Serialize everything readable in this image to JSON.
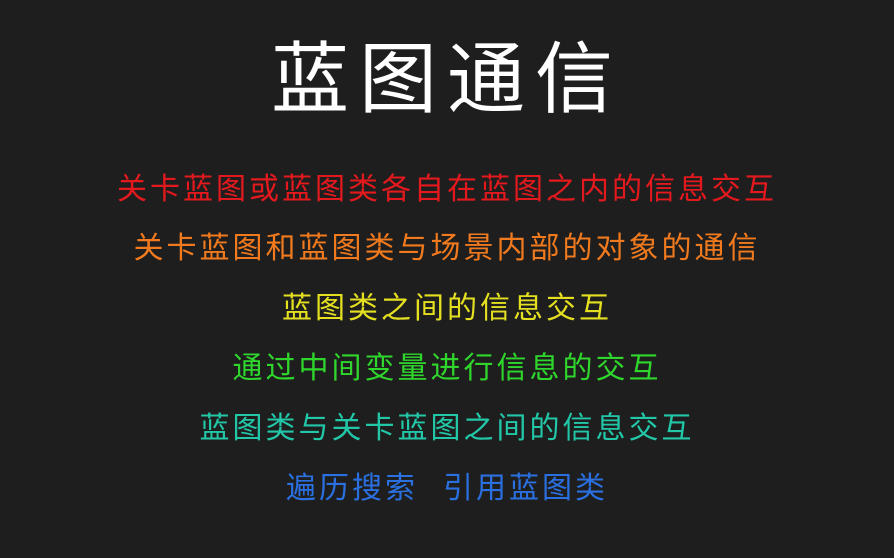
{
  "slide": {
    "title": "蓝图通信",
    "lines": [
      {
        "text": "关卡蓝图或蓝图类各自在蓝图之内的信息交互",
        "color": "#e3191e"
      },
      {
        "text": "关卡蓝图和蓝图类与场景内部的对象的通信",
        "color": "#f07a1d"
      },
      {
        "text": "蓝图类之间的信息交互",
        "color": "#e4e020"
      },
      {
        "text": "通过中间变量进行信息的交互",
        "color": "#2fd72c"
      },
      {
        "text": "蓝图类与关卡蓝图之间的信息交互",
        "color": "#22c7a8"
      },
      {
        "text": "遍历搜索  引用蓝图类",
        "color": "#2a70e0"
      }
    ],
    "background": "#1e1e1e",
    "title_color": "#ffffff"
  }
}
